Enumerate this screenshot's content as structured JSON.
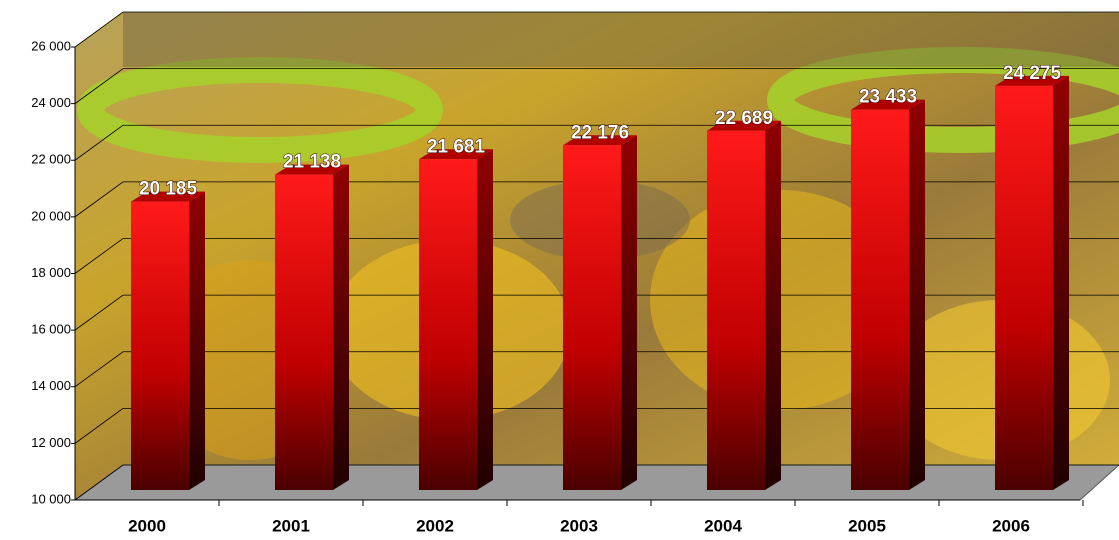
{
  "chart_data": {
    "type": "bar3d",
    "categories": [
      "2000",
      "2001",
      "2002",
      "2003",
      "2004",
      "2005",
      "2006"
    ],
    "values": [
      20185,
      21138,
      21681,
      22176,
      22689,
      23433,
      24275
    ],
    "value_labels": [
      "20 185",
      "21 138",
      "21 681",
      "22 176",
      "22 689",
      "23 433",
      "24 275"
    ],
    "color": "#e00000",
    "ylim": [
      10000,
      26000
    ],
    "yticks": [
      {
        "value": 10000,
        "label": "10 000"
      },
      {
        "value": 12000,
        "label": "12 000"
      },
      {
        "value": 14000,
        "label": "14 000"
      },
      {
        "value": 16000,
        "label": "16 000"
      },
      {
        "value": 18000,
        "label": "18 000"
      },
      {
        "value": 20000,
        "label": "20 000"
      },
      {
        "value": 22000,
        "label": "22 000"
      },
      {
        "value": 24000,
        "label": "24 000"
      },
      {
        "value": 26000,
        "label": "26 000"
      }
    ],
    "grid": true
  }
}
